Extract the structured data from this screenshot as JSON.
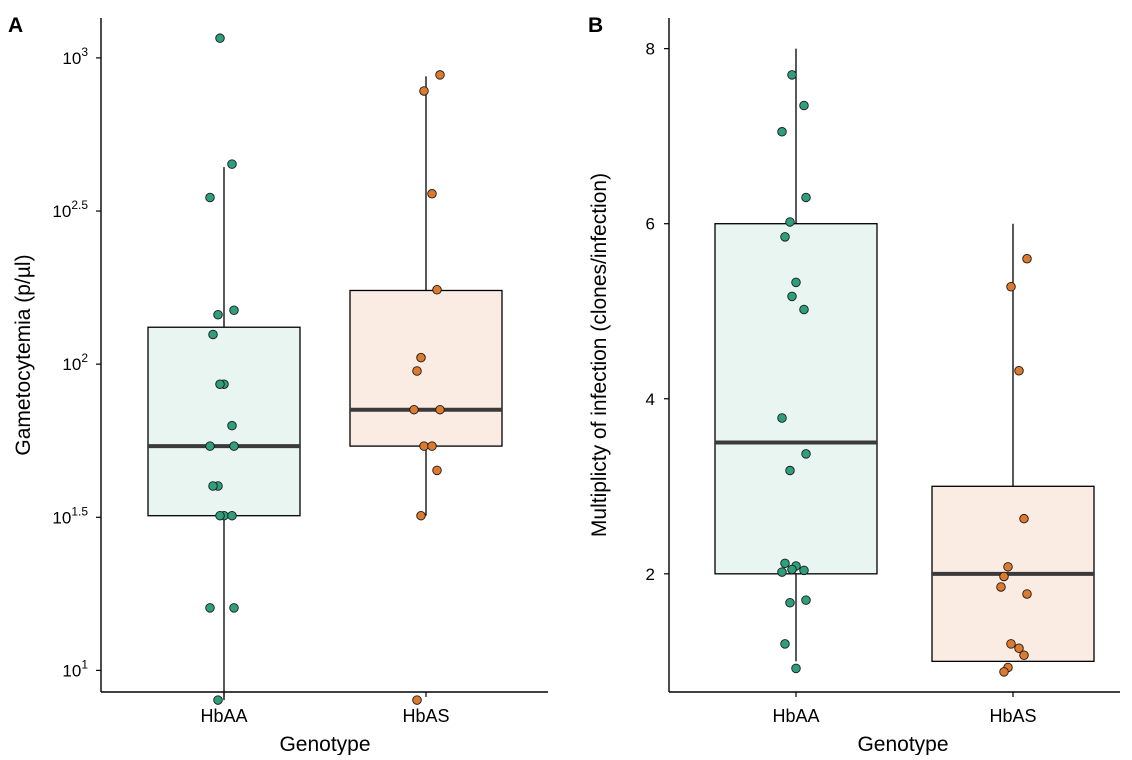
{
  "chart_data": [
    {
      "panel_label": "A",
      "type": "box",
      "xlabel": "Genotype",
      "ylabel": "Gametocytemia (p/µl)",
      "y_scale": "log10",
      "ylim": [
        8.5,
        1350
      ],
      "y_ticks": [
        {
          "value": 10,
          "base": "10",
          "exp": "1"
        },
        {
          "value": 31.62,
          "base": "10",
          "exp": "1.5"
        },
        {
          "value": 100,
          "base": "10",
          "exp": "2"
        },
        {
          "value": 316.2,
          "base": "10",
          "exp": "2.5"
        },
        {
          "value": 1000,
          "base": "10",
          "exp": "3"
        }
      ],
      "categories": [
        "HbAA",
        "HbAS"
      ],
      "boxes": [
        {
          "category": "HbAA",
          "whisker_low": 8,
          "q1": 32,
          "median": 54,
          "q3": 132,
          "whisker_high": 440
        },
        {
          "category": "HbAS",
          "whisker_low": 32,
          "q1": 54,
          "median": 71,
          "q3": 174,
          "whisker_high": 870
        }
      ],
      "points": [
        {
          "category": "HbAA",
          "values": [
            1160,
            450,
            350,
            150,
            145,
            125,
            86,
            86,
            63,
            54,
            54,
            40,
            40,
            32,
            32,
            32,
            16,
            16,
            8
          ]
        },
        {
          "category": "HbAS",
          "values": [
            880,
            780,
            360,
            175,
            105,
            95,
            71,
            71,
            54,
            54,
            45,
            32,
            8
          ]
        }
      ],
      "colors": {
        "HbAA": "#2e9e7c",
        "HbAS": "#de7a2e",
        "HbAA_fill": "#e8f5f1",
        "HbAS_fill": "#faece3",
        "median": "#3a3a3a"
      }
    },
    {
      "panel_label": "B",
      "type": "box",
      "xlabel": "Genotype",
      "ylabel": "Multiplicty of infection (clones/infection)",
      "y_scale": "linear",
      "ylim": [
        0.65,
        8.35
      ],
      "y_ticks": [
        {
          "value": 2,
          "label": "2"
        },
        {
          "value": 4,
          "label": "4"
        },
        {
          "value": 6,
          "label": "6"
        },
        {
          "value": 8,
          "label": "8"
        }
      ],
      "categories": [
        "HbAA",
        "HbAS"
      ],
      "boxes": [
        {
          "category": "HbAA",
          "whisker_low": 1,
          "q1": 2,
          "median": 3.5,
          "q3": 6,
          "whisker_high": 8
        },
        {
          "category": "HbAS",
          "whisker_low": 1,
          "q1": 1,
          "median": 2,
          "q3": 3,
          "whisker_high": 6
        }
      ],
      "points": [
        {
          "category": "HbAA",
          "values": [
            7.7,
            7.35,
            7.05,
            6.3,
            6.02,
            5.85,
            5.33,
            5.17,
            5.02,
            3.78,
            3.37,
            3.18,
            2.12,
            2.09,
            2.05,
            2.04,
            2.02,
            1.7,
            1.67,
            1.2,
            0.92
          ]
        },
        {
          "category": "HbAS",
          "values": [
            5.6,
            5.28,
            4.32,
            2.63,
            2.08,
            1.97,
            1.85,
            1.77,
            1.2,
            1.15,
            1.07,
            0.93,
            0.88
          ]
        }
      ],
      "colors": {
        "HbAA": "#2e9e7c",
        "HbAS": "#de7a2e",
        "HbAA_fill": "#e8f5f1",
        "HbAS_fill": "#faece3",
        "median": "#3a3a3a"
      }
    }
  ]
}
